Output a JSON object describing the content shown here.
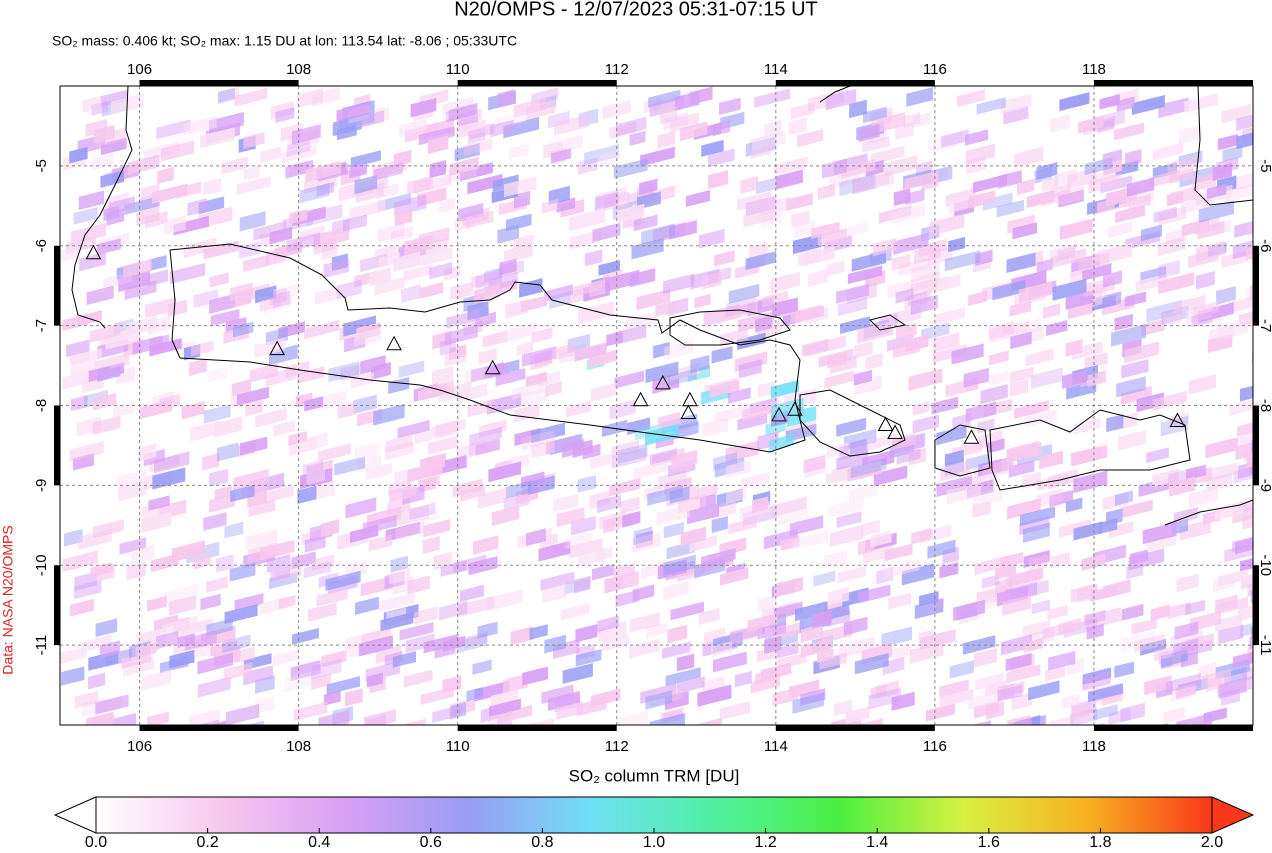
{
  "title": "N20/OMPS - 12/07/2023 05:31-07:15 UT",
  "subtitle": "SO₂ mass: 0.406 kt; SO₂ max: 1.15 DU at lon: 113.54 lat: -8.06 ; 05:33UTC",
  "credit": "Data: NASA N20/OMPS",
  "map": {
    "xlim": [
      105,
      120
    ],
    "ylim": [
      -12,
      -4
    ],
    "xticks": [
      106,
      108,
      110,
      112,
      114,
      116,
      118
    ],
    "yticks": [
      -5,
      -6,
      -7,
      -8,
      -9,
      -10,
      -11
    ],
    "volcanoes": {
      "lon": [
        105.42,
        107.73,
        109.2,
        110.44,
        112.3,
        112.58,
        112.92,
        112.9,
        114.04,
        114.24,
        115.38,
        115.5,
        116.46,
        119.05
      ],
      "lat": [
        -6.1,
        -7.3,
        -7.24,
        -7.54,
        -7.94,
        -7.73,
        -7.94,
        -8.1,
        -8.13,
        -8.06,
        -8.25,
        -8.35,
        -8.41,
        -8.2
      ]
    }
  },
  "colorbar": {
    "label": "SO₂ column TRM [DU]",
    "lim": [
      0,
      2
    ],
    "ticks": [
      {
        "value": 0,
        "label": "0.0"
      },
      {
        "value": 0.2,
        "label": "0.2"
      },
      {
        "value": 0.4,
        "label": "0.4"
      },
      {
        "value": 0.6,
        "label": "0.6"
      },
      {
        "value": 0.8,
        "label": "0.8"
      },
      {
        "value": 1.0,
        "label": "1.0"
      },
      {
        "value": 1.2,
        "label": "1.2"
      },
      {
        "value": 1.4,
        "label": "1.4"
      },
      {
        "value": 1.6,
        "label": "1.6"
      },
      {
        "value": 1.8,
        "label": "1.8"
      },
      {
        "value": 2.0,
        "label": "2.0"
      }
    ],
    "colors": [
      "#ffffff",
      "#f7c8ee",
      "#d9a0f5",
      "#9a9cf5",
      "#6fe0f5",
      "#4ff0a0",
      "#4cf040",
      "#d8f040",
      "#f8b020",
      "#f83818"
    ]
  }
}
